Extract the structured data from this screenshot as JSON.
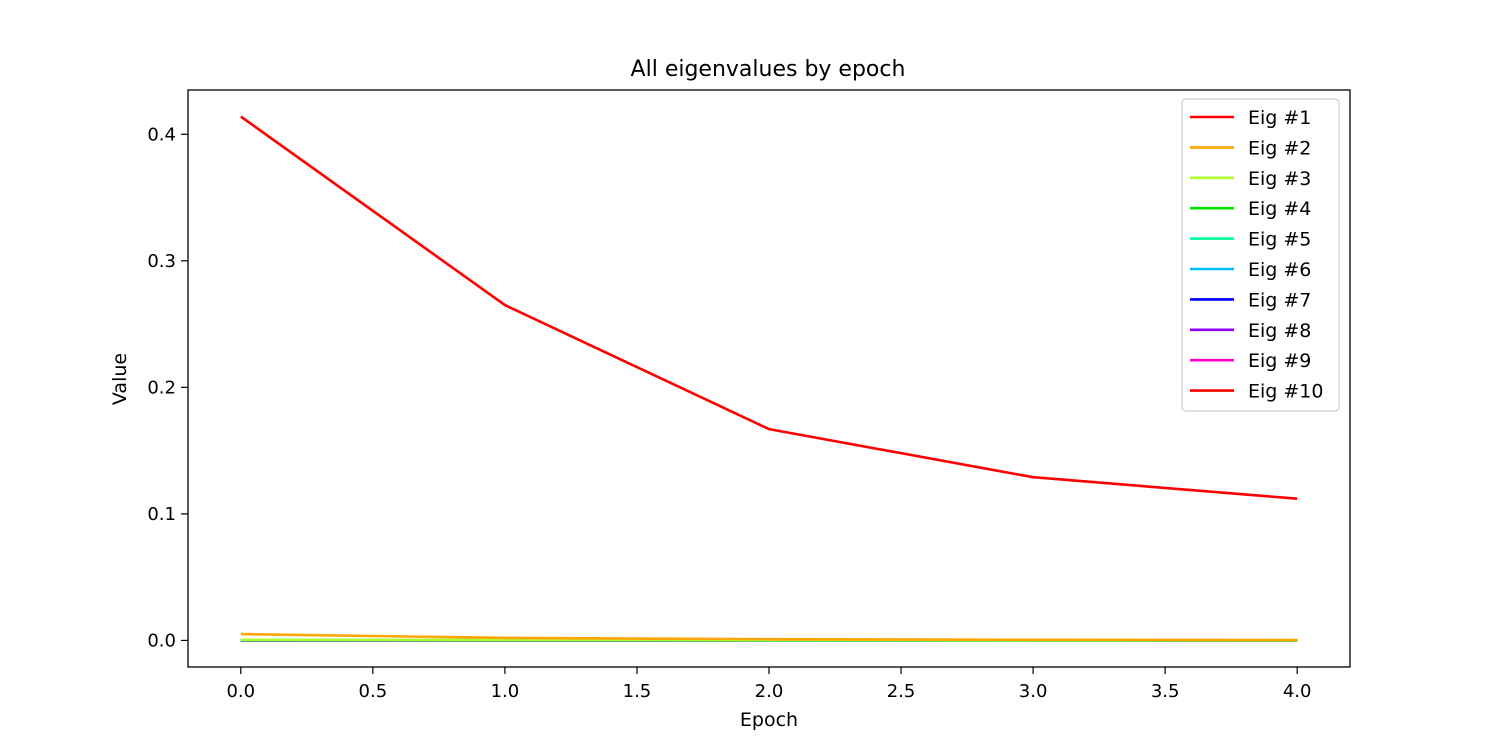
{
  "chart_data": {
    "type": "line",
    "title": "All eigenvalues by epoch",
    "xlabel": "Epoch",
    "ylabel": "Value",
    "x": [
      0,
      1,
      2,
      3,
      4
    ],
    "xlim": [
      -0.2,
      4.2
    ],
    "ylim": [
      -0.021,
      0.435
    ],
    "xticks": [
      "0.0",
      "0.5",
      "1.0",
      "1.5",
      "2.0",
      "2.5",
      "3.0",
      "3.5",
      "4.0"
    ],
    "yticks": [
      "0.0",
      "0.1",
      "0.2",
      "0.3",
      "0.4"
    ],
    "grid": false,
    "legend_position": "top-right",
    "series": [
      {
        "name": "Eig #1",
        "color": "#ff0000",
        "values": [
          0.414,
          0.265,
          0.167,
          0.129,
          0.112
        ]
      },
      {
        "name": "Eig #2",
        "color": "#ffa500",
        "values": [
          0.005,
          0.002,
          0.001,
          0.0005,
          0.0003
        ]
      },
      {
        "name": "Eig #3",
        "color": "#adff2f",
        "values": [
          0.0005,
          0.0003,
          0.0002,
          0.0001,
          0.0001
        ]
      },
      {
        "name": "Eig #4",
        "color": "#00e600",
        "values": [
          0.0003,
          0.0002,
          0.0001,
          0.0001,
          0.0
        ]
      },
      {
        "name": "Eig #5",
        "color": "#00fa9a",
        "values": [
          0.0002,
          0.0001,
          0.0001,
          0.0,
          0.0
        ]
      },
      {
        "name": "Eig #6",
        "color": "#00bfff",
        "values": [
          0.0001,
          0.0001,
          0.0,
          0.0,
          0.0
        ]
      },
      {
        "name": "Eig #7",
        "color": "#0000ff",
        "values": [
          0.0001,
          0.0,
          0.0,
          0.0,
          0.0
        ]
      },
      {
        "name": "Eig #8",
        "color": "#8a00ff",
        "values": [
          0.0,
          0.0,
          0.0,
          0.0,
          0.0
        ]
      },
      {
        "name": "Eig #9",
        "color": "#ff00cc",
        "values": [
          0.0,
          0.0,
          0.0,
          0.0,
          0.0
        ]
      },
      {
        "name": "Eig #10",
        "color": "#ff0000",
        "values": [
          0.0,
          0.0,
          0.0,
          0.0,
          0.0
        ]
      }
    ]
  }
}
